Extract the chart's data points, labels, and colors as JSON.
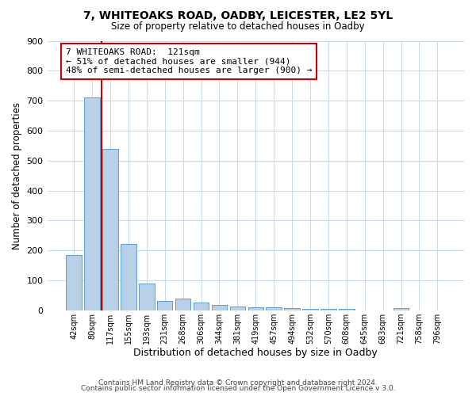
{
  "title": "7, WHITEOAKS ROAD, OADBY, LEICESTER, LE2 5YL",
  "subtitle": "Size of property relative to detached houses in Oadby",
  "xlabel": "Distribution of detached houses by size in Oadby",
  "ylabel": "Number of detached properties",
  "bar_labels": [
    "42sqm",
    "80sqm",
    "117sqm",
    "155sqm",
    "193sqm",
    "231sqm",
    "268sqm",
    "306sqm",
    "344sqm",
    "381sqm",
    "419sqm",
    "457sqm",
    "494sqm",
    "532sqm",
    "570sqm",
    "608sqm",
    "645sqm",
    "683sqm",
    "721sqm",
    "758sqm",
    "796sqm"
  ],
  "bar_values": [
    185,
    710,
    540,
    222,
    90,
    30,
    40,
    27,
    18,
    12,
    10,
    10,
    7,
    5,
    5,
    4,
    0,
    0,
    8,
    0,
    0
  ],
  "bar_color": "#b8d0e8",
  "bar_edge_color": "#5a9fd4",
  "vline_color": "#cc0000",
  "ylim": [
    0,
    900
  ],
  "yticks": [
    0,
    100,
    200,
    300,
    400,
    500,
    600,
    700,
    800,
    900
  ],
  "annotation_line1": "7 WHITEOAKS ROAD:  121sqm",
  "annotation_line2": "← 51% of detached houses are smaller (944)",
  "annotation_line3": "48% of semi-detached houses are larger (900) →",
  "annotation_box_color": "#ffffff",
  "annotation_box_edge": "#cc0000",
  "footer_line1": "Contains HM Land Registry data © Crown copyright and database right 2024.",
  "footer_line2": "Contains public sector information licensed under the Open Government Licence v 3.0.",
  "background_color": "#ffffff",
  "grid_color": "#c8d8e8"
}
